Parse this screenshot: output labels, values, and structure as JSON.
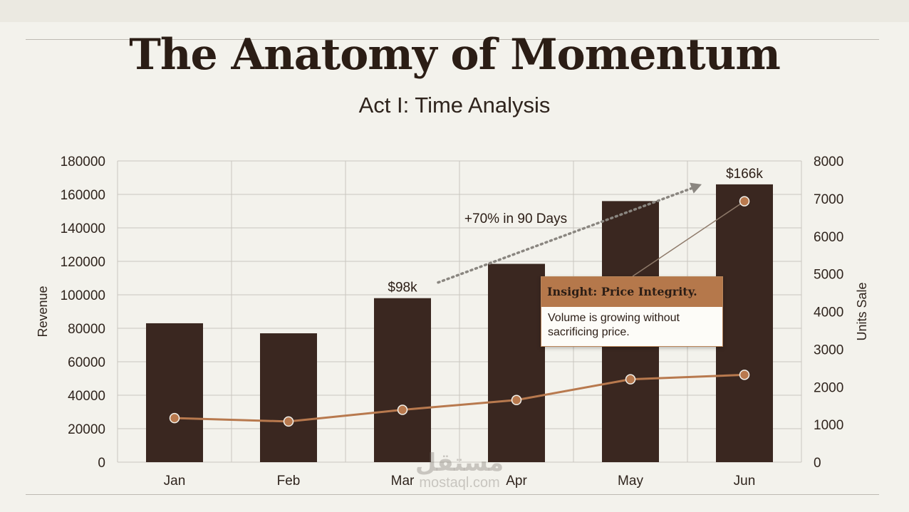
{
  "slide": {
    "title": "The Anatomy of Momentum",
    "subtitle": "Act I: Time Analysis"
  },
  "chart_data": {
    "type": "bar",
    "categories": [
      "Jan",
      "Feb",
      "Mar",
      "Apr",
      "May",
      "Jun"
    ],
    "series": [
      {
        "type": "bar",
        "axis": "left",
        "values": [
          83000,
          77000,
          98000,
          118500,
          156000,
          166000
        ]
      },
      {
        "type": "line",
        "axis": "right",
        "values": [
          1170,
          1080,
          1390,
          1650,
          2200,
          2320
        ]
      },
      {
        "type": "line",
        "axis": "right",
        "values": [
          null,
          null,
          null,
          null,
          null,
          6930
        ]
      }
    ],
    "ylabel": "Revenue",
    "y2label": "Units Sale",
    "ylim": [
      0,
      180000
    ],
    "y2lim": [
      0,
      8000
    ],
    "yticks": [
      0,
      20000,
      40000,
      60000,
      80000,
      100000,
      120000,
      140000,
      160000,
      180000
    ],
    "y2ticks": [
      0,
      1000,
      2000,
      3000,
      4000,
      5000,
      6000,
      7000,
      8000
    ],
    "grid": true,
    "colors": {
      "bar": "#3a2720",
      "line": "#b8794e",
      "grid": "#c9c6bf",
      "arrow": "#8a8680"
    },
    "data_labels": [
      {
        "category": "Mar",
        "text": "$98k"
      },
      {
        "category": "Jun",
        "text": "$166k"
      }
    ],
    "annotations": {
      "growth": "+70% in 90 Days",
      "insight_title": "Insight: Price Integrity.",
      "insight_text": "Volume is growing without sacrificing price."
    }
  },
  "watermark": {
    "logo": "مستقل",
    "text": "mostaql.com"
  }
}
